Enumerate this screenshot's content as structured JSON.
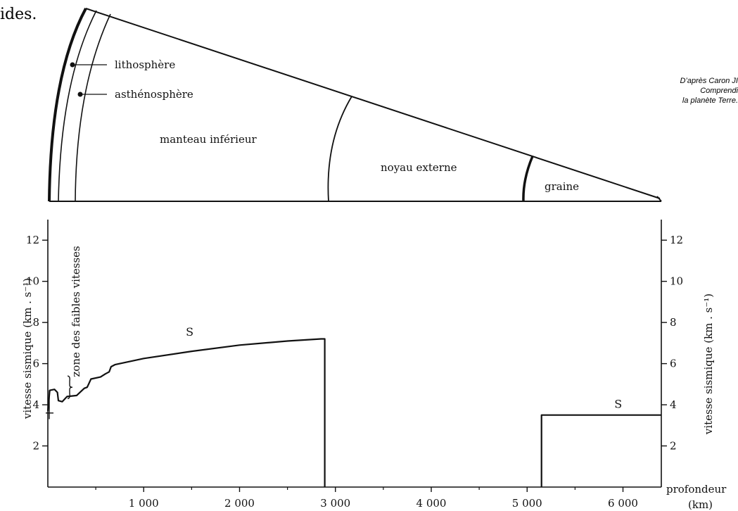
{
  "header_fragment": "ides.",
  "credit": {
    "line1": "D’après Caron JI",
    "line2": "Comprendi",
    "line3": "la planète Terre."
  },
  "earth_section": {
    "layers": [
      "lithosphère",
      "asthénosphère",
      "manteau inférieur",
      "noyau externe",
      "graine"
    ]
  },
  "chart_data": {
    "type": "line",
    "title": "",
    "xlabel": "profondeur",
    "xunit": "(km)",
    "ylabel": "vitesse sismique (km . s⁻¹)",
    "ylabel_right": "vitesse sismique (km . s⁻¹)",
    "xlim": [
      0,
      6400
    ],
    "ylim": [
      0,
      13
    ],
    "x_ticks": [
      1000,
      2000,
      3000,
      4000,
      5000,
      6000
    ],
    "x_tick_labels": [
      "1 000",
      "2 000",
      "3 000",
      "4 000",
      "5 000",
      "6 000"
    ],
    "y_ticks": [
      2,
      4,
      6,
      8,
      10,
      12
    ],
    "y_tick_labels": [
      "2",
      "4",
      "6",
      "8",
      "10",
      "12"
    ],
    "grid": false,
    "annotations": [
      "zone des faibles vitesses"
    ],
    "series": [
      {
        "name": "S",
        "segments": [
          [
            [
              0,
              3.7
            ],
            [
              20,
              4.7
            ],
            [
              70,
              4.75
            ],
            [
              100,
              4.6
            ],
            [
              110,
              4.2
            ],
            [
              150,
              4.15
            ],
            [
              200,
              4.4
            ],
            [
              300,
              4.45
            ],
            [
              380,
              4.8
            ],
            [
              410,
              4.85
            ],
            [
              450,
              5.25
            ],
            [
              550,
              5.35
            ],
            [
              600,
              5.5
            ],
            [
              640,
              5.6
            ],
            [
              660,
              5.85
            ],
            [
              700,
              5.95
            ],
            [
              1000,
              6.25
            ],
            [
              1500,
              6.6
            ],
            [
              2000,
              6.9
            ],
            [
              2500,
              7.1
            ],
            [
              2850,
              7.2
            ],
            [
              2889,
              7.2
            ],
            [
              2889,
              0
            ]
          ],
          [
            [
              5150,
              0
            ],
            [
              5150,
              3.5
            ],
            [
              6400,
              3.5
            ]
          ]
        ]
      }
    ]
  }
}
